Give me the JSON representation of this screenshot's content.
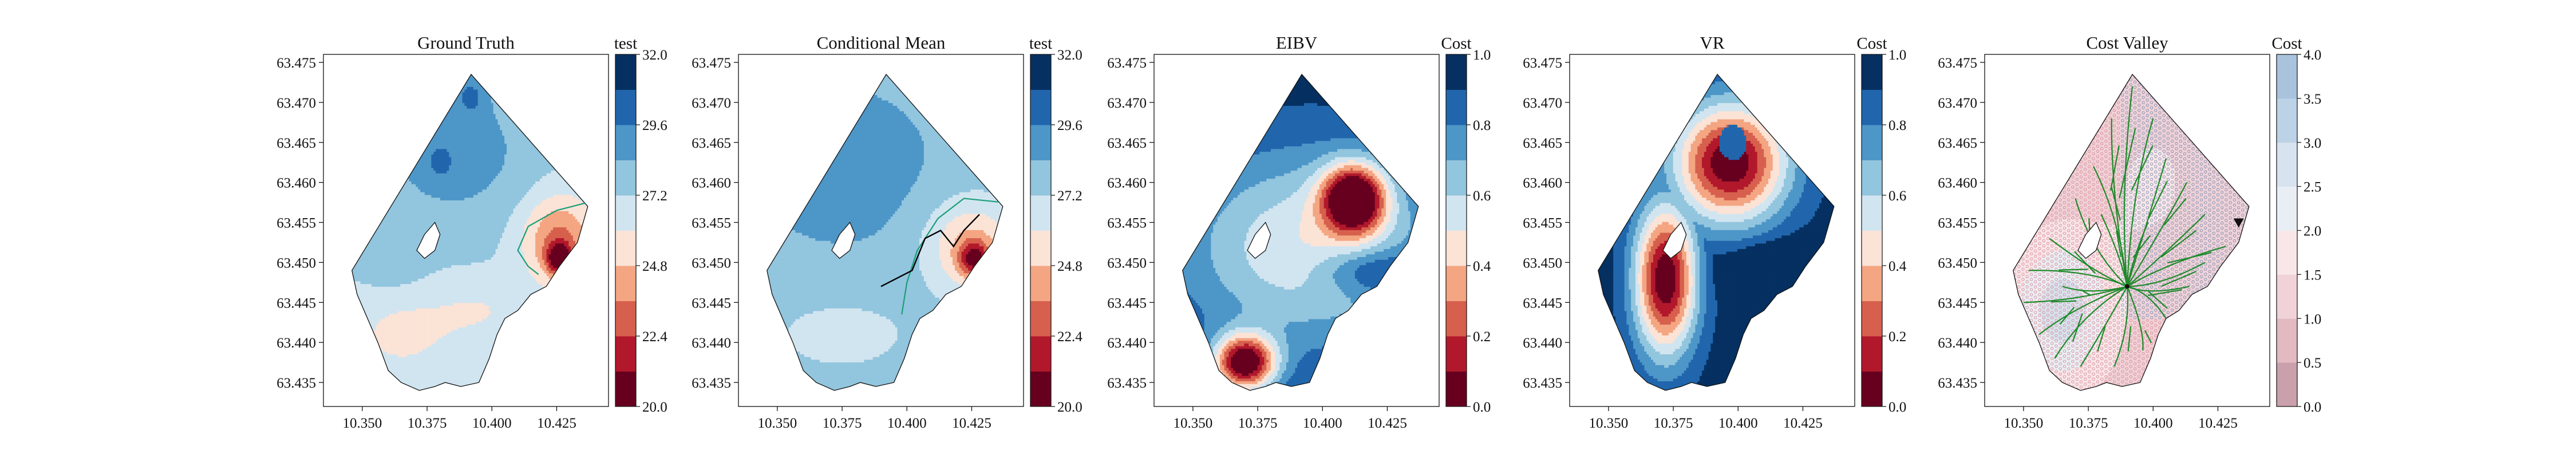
{
  "chart_data": [
    {
      "type": "heatmap",
      "title": "Ground Truth",
      "colorbar_label": "test",
      "colormap": "RdBu",
      "xlim": [
        10.335,
        10.445
      ],
      "ylim": [
        63.432,
        63.476
      ],
      "xticks": [
        "10.350",
        "10.375",
        "10.400",
        "10.425"
      ],
      "yticks": [
        "63.435",
        "63.440",
        "63.445",
        "63.450",
        "63.455",
        "63.460",
        "63.465",
        "63.470",
        "63.475"
      ],
      "cbar_ticks": [
        "20.0",
        "22.4",
        "24.8",
        "27.2",
        "29.6",
        "32.0"
      ],
      "cbar_range": [
        20.0,
        32.0
      ],
      "overlay": "boundary contour",
      "hot_spots": [
        {
          "x": 10.392,
          "y": 63.471,
          "value": 32.0
        },
        {
          "x": 10.38,
          "y": 63.463,
          "value": 31.0
        },
        {
          "x": 10.426,
          "y": 63.451,
          "value": 20.0
        }
      ]
    },
    {
      "type": "heatmap",
      "title": "Conditional Mean",
      "colorbar_label": "test",
      "colormap": "RdBu",
      "xlim": [
        10.335,
        10.445
      ],
      "ylim": [
        63.432,
        63.476
      ],
      "xticks": [
        "10.350",
        "10.375",
        "10.400",
        "10.425"
      ],
      "yticks": [
        "63.435",
        "63.440",
        "63.445",
        "63.450",
        "63.455",
        "63.460",
        "63.465",
        "63.470",
        "63.475"
      ],
      "cbar_ticks": [
        "20.0",
        "22.4",
        "24.8",
        "27.2",
        "29.6",
        "32.0"
      ],
      "cbar_range": [
        20.0,
        32.0
      ],
      "trajectory": [
        {
          "x": 10.39,
          "y": 63.447
        },
        {
          "x": 10.402,
          "y": 63.449
        },
        {
          "x": 10.407,
          "y": 63.453
        },
        {
          "x": 10.413,
          "y": 63.454
        },
        {
          "x": 10.418,
          "y": 63.452
        },
        {
          "x": 10.422,
          "y": 63.454
        },
        {
          "x": 10.428,
          "y": 63.456
        }
      ],
      "hot_spots": [
        {
          "x": 10.426,
          "y": 63.451,
          "value": 20.0
        }
      ]
    },
    {
      "type": "heatmap",
      "title": "EIBV",
      "colorbar_label": "Cost",
      "colormap": "RdBu",
      "xlim": [
        10.335,
        10.445
      ],
      "ylim": [
        63.432,
        63.476
      ],
      "xticks": [
        "10.350",
        "10.375",
        "10.400",
        "10.425"
      ],
      "yticks": [
        "63.435",
        "63.440",
        "63.445",
        "63.450",
        "63.455",
        "63.460",
        "63.465",
        "63.470",
        "63.475"
      ],
      "cbar_ticks": [
        "0.0",
        "0.2",
        "0.4",
        "0.6",
        "0.8",
        "1.0"
      ],
      "cbar_range": [
        0.0,
        1.0
      ],
      "low_cost_centres": [
        {
          "x": 10.412,
          "y": 63.458,
          "value": 0.0
        },
        {
          "x": 10.37,
          "y": 63.437,
          "value": 0.0
        }
      ]
    },
    {
      "type": "heatmap",
      "title": "VR",
      "colorbar_label": "Cost",
      "colormap": "RdBu",
      "xlim": [
        10.335,
        10.445
      ],
      "ylim": [
        63.432,
        63.476
      ],
      "xticks": [
        "10.350",
        "10.375",
        "10.400",
        "10.425"
      ],
      "yticks": [
        "63.435",
        "63.440",
        "63.445",
        "63.450",
        "63.455",
        "63.460",
        "63.465",
        "63.470",
        "63.475"
      ],
      "cbar_ticks": [
        "0.0",
        "0.2",
        "0.4",
        "0.6",
        "0.8",
        "1.0"
      ],
      "cbar_range": [
        0.0,
        1.0
      ]
    },
    {
      "type": "heatmap",
      "title": "Cost Valley",
      "colorbar_label": "Cost",
      "colormap": "RdBu",
      "xlim": [
        10.335,
        10.445
      ],
      "ylim": [
        63.432,
        63.476
      ],
      "xticks": [
        "10.350",
        "10.375",
        "10.400",
        "10.425"
      ],
      "yticks": [
        "63.435",
        "63.440",
        "63.445",
        "63.450",
        "63.455",
        "63.460",
        "63.465",
        "63.470",
        "63.475"
      ],
      "cbar_ticks": [
        "0.0",
        "0.5",
        "1.0",
        "1.5",
        "2.0",
        "2.5",
        "3.0",
        "3.5",
        "4.0"
      ],
      "cbar_range": [
        0.0,
        4.0
      ],
      "tree_root": {
        "x": 10.39,
        "y": 63.447
      },
      "target_marker": {
        "x": 10.433,
        "y": 63.455
      }
    }
  ],
  "colors": {
    "field_levels_low_to_high": [
      "#67001f",
      "#b2182b",
      "#d6604d",
      "#f4a582",
      "#fbe3d6",
      "#d1e5f0",
      "#92c5de",
      "#4d96c8",
      "#2166ac",
      "#053061"
    ],
    "contour_line": "#1a9e77",
    "tree": "#1f8a2a",
    "trajectory": "#000000"
  }
}
